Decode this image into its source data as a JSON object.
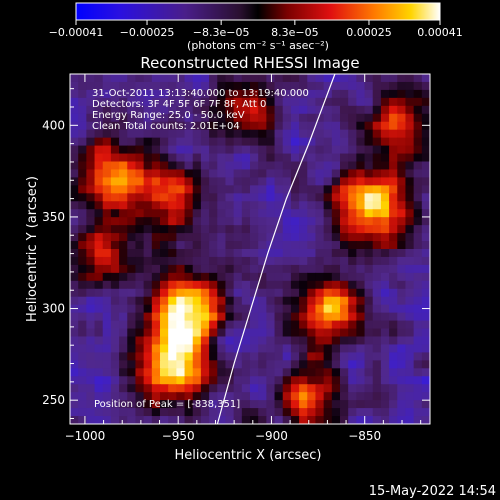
{
  "chart_data": {
    "type": "heatmap",
    "title": "Reconstructed RHESSI Image",
    "xlabel": "Heliocentric X (arcsec)",
    "ylabel": "Heliocentric Y (arcsec)",
    "xlim": [
      -1008,
      -815
    ],
    "ylim": [
      237,
      428
    ],
    "x_ticks": [
      -1000,
      -950,
      -900,
      -850
    ],
    "x_tick_labels": [
      "−1000",
      "−950",
      "−900",
      "−850"
    ],
    "y_ticks": [
      250,
      300,
      350,
      400
    ],
    "y_tick_labels": [
      "250",
      "300",
      "350",
      "400"
    ],
    "colorbar": {
      "unit_label": "(photons cm⁻² s⁻¹ asec⁻²)",
      "tick_values": [
        -0.00041,
        -0.00025,
        -8.3e-05,
        8.3e-05,
        0.00025,
        0.00041
      ],
      "tick_labels": [
        "−0.00041",
        "−0.00025",
        "−8.3e−05",
        "8.3e−05",
        "0.00025",
        "0.00041"
      ],
      "range": [
        -0.00041,
        0.00041
      ]
    },
    "limb_curve": [
      {
        "x": -929,
        "y": 237
      },
      {
        "x": -920,
        "y": 270
      },
      {
        "x": -911,
        "y": 300
      },
      {
        "x": -902,
        "y": 330
      },
      {
        "x": -892,
        "y": 360
      },
      {
        "x": -880,
        "y": 390
      },
      {
        "x": -866,
        "y": 428
      }
    ],
    "bright_regions": [
      {
        "x": -845,
        "y": 355,
        "intensity": 1.0
      },
      {
        "x": -946,
        "y": 300,
        "intensity": 0.95
      },
      {
        "x": -953,
        "y": 268,
        "intensity": 0.9
      },
      {
        "x": -985,
        "y": 375,
        "intensity": 0.7
      },
      {
        "x": -955,
        "y": 360,
        "intensity": 0.6
      },
      {
        "x": -870,
        "y": 300,
        "intensity": 0.7
      },
      {
        "x": -880,
        "y": 250,
        "intensity": 0.6
      },
      {
        "x": -830,
        "y": 400,
        "intensity": 0.55
      },
      {
        "x": -990,
        "y": 330,
        "intensity": 0.55
      },
      {
        "x": -915,
        "y": 410,
        "intensity": 0.5
      }
    ],
    "annotations": [
      "31-Oct-2011 13:13:40.000 to 13:19:40.000",
      "Detectors: 3F 4F 5F 6F 7F 8F, Att 0",
      "Energy Range: 25.0 - 50.0 keV",
      "Clean    Total counts: 2.01E+04"
    ],
    "peak_label": "Position of Peak = [-838,351]",
    "grid": false
  },
  "footer": {
    "timestamp": "15-May-2022 14:54"
  }
}
